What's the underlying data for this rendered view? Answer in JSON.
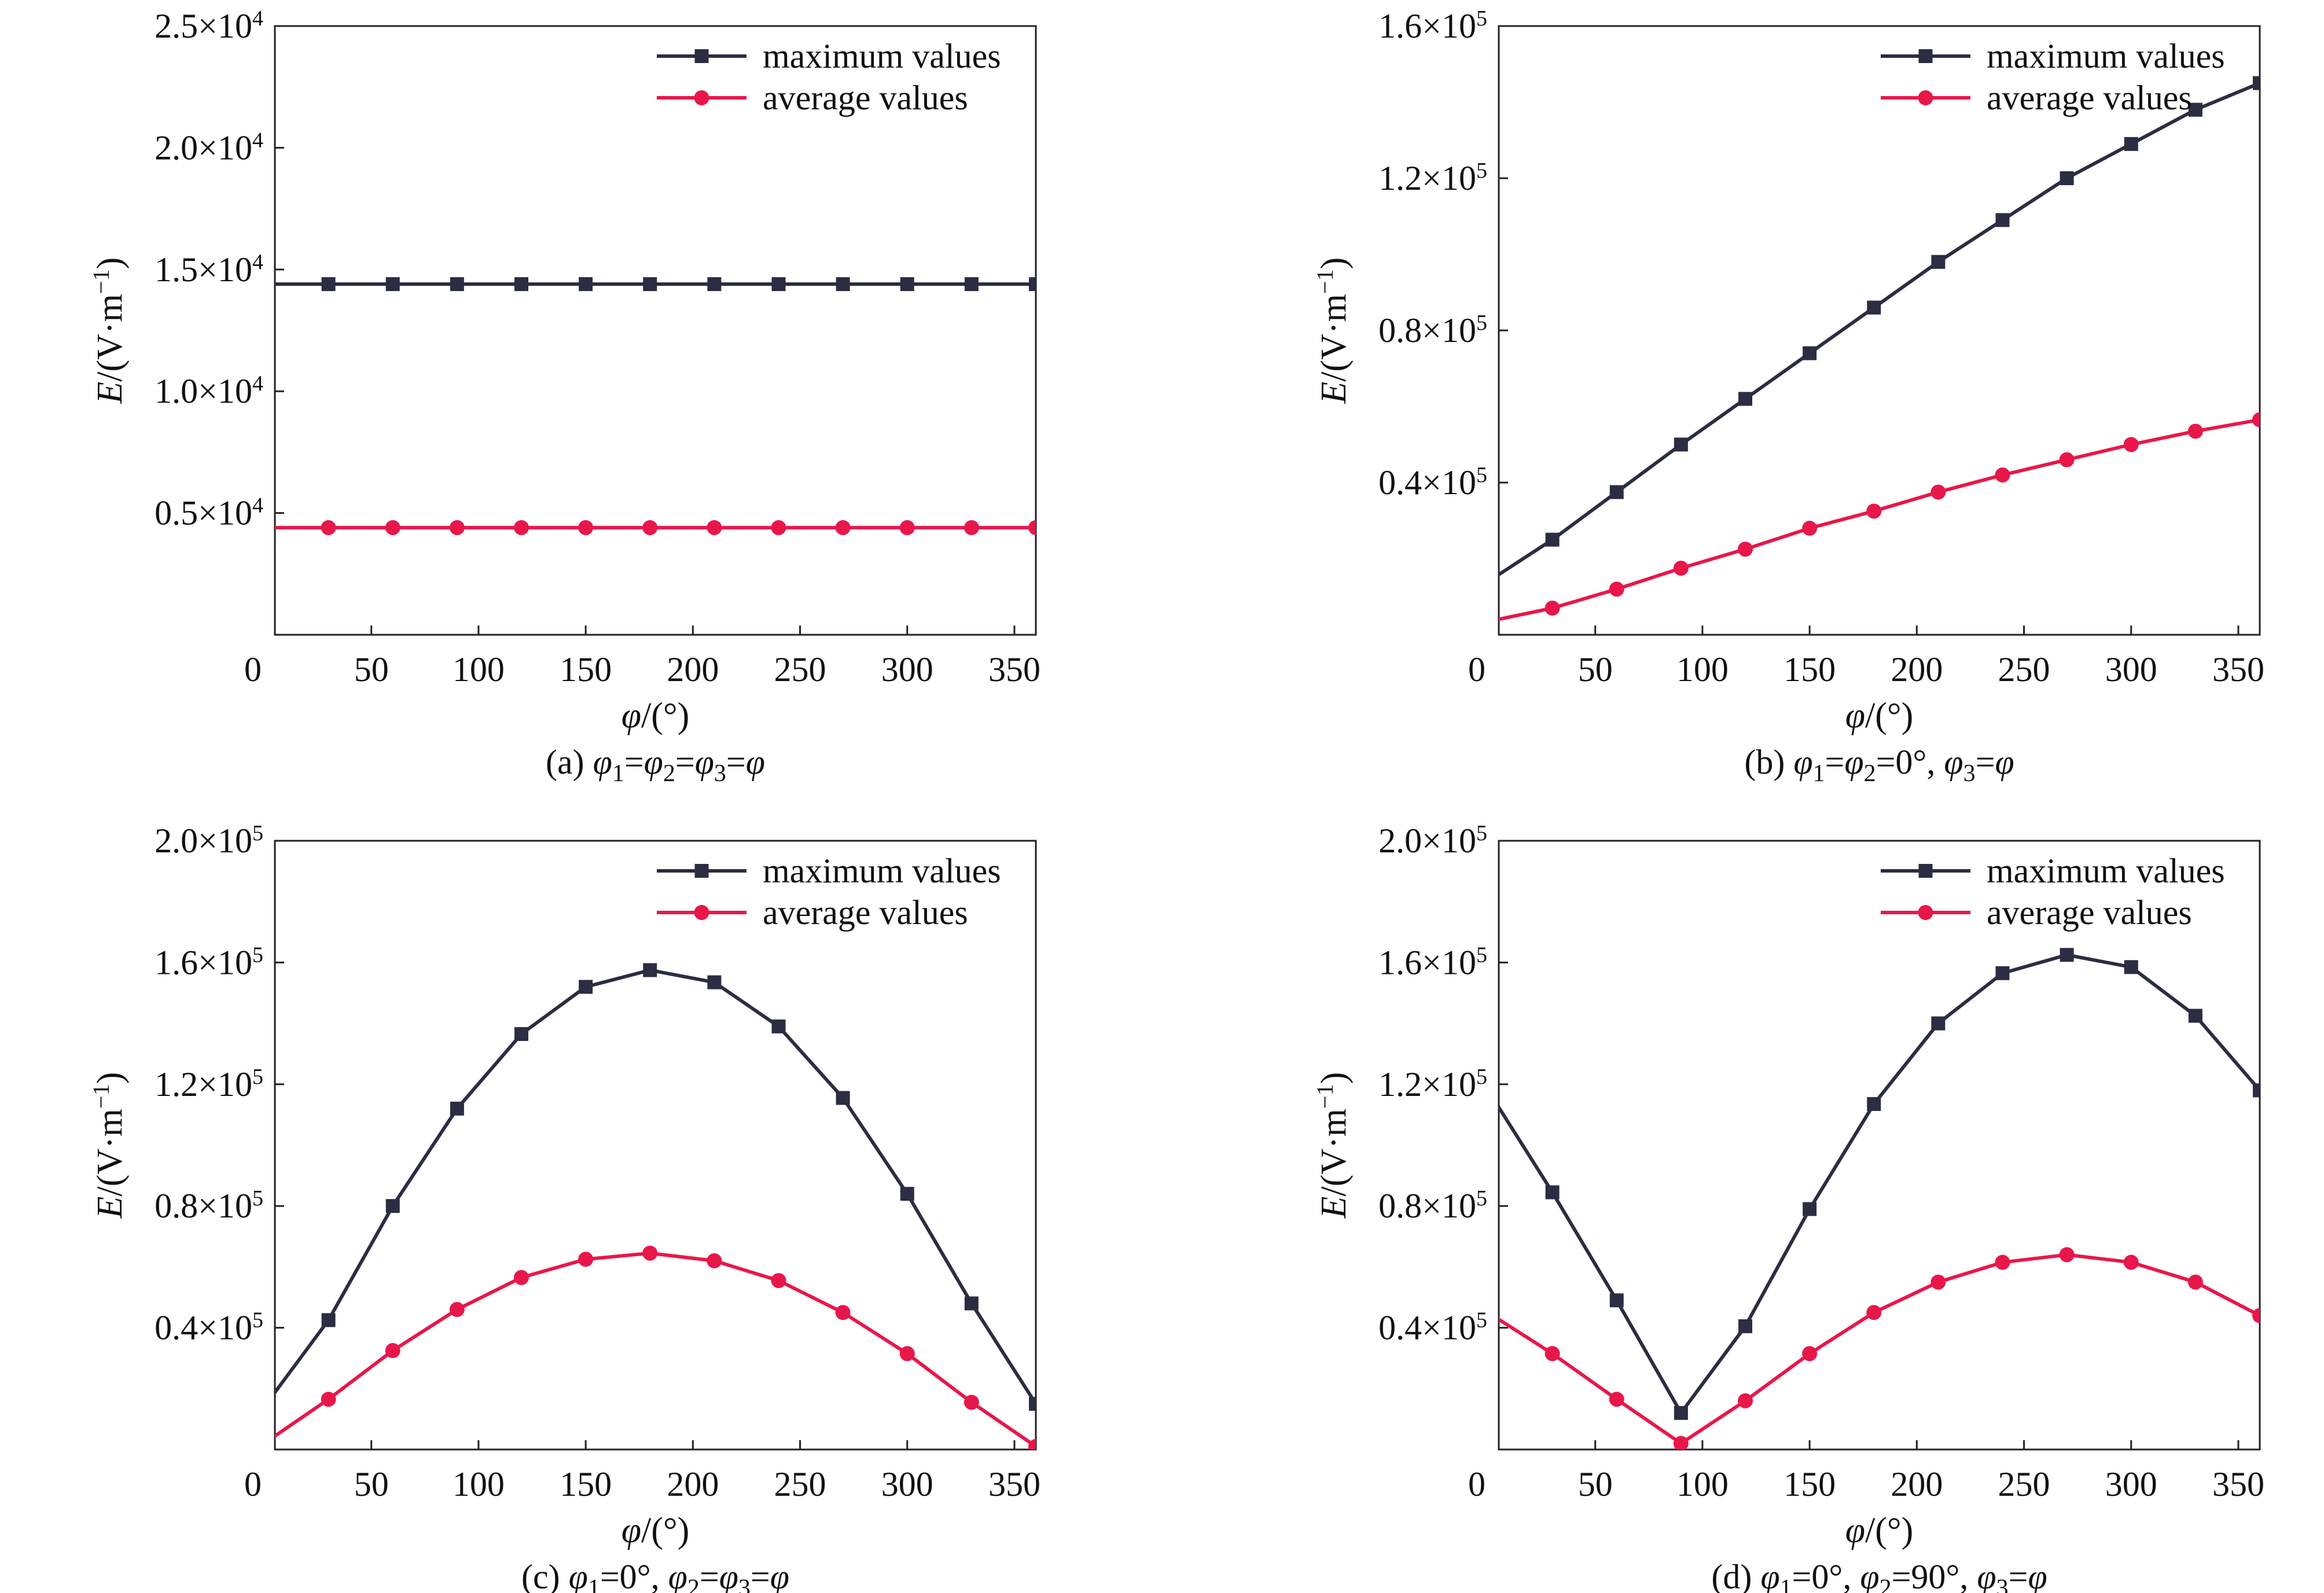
{
  "chart_data": [
    {
      "type": "line",
      "caption": "(a) φ1=φ2=φ3=φ",
      "xlabel": "φ/(°)",
      "ylabel": "E/(V·m⁻¹)",
      "xlim": [
        5,
        360
      ],
      "ylim": [
        0,
        25000
      ],
      "xticks": [
        0,
        50,
        100,
        150,
        200,
        250,
        300,
        350
      ],
      "yticks": [
        5000,
        10000,
        15000,
        20000,
        25000
      ],
      "ytick_labels": [
        {
          "mant": "0.5×10",
          "exp": "4"
        },
        {
          "mant": "1.0×10",
          "exp": "4"
        },
        {
          "mant": "1.5×10",
          "exp": "4"
        },
        {
          "mant": "2.0×10",
          "exp": "4"
        },
        {
          "mant": "2.5×10",
          "exp": "4"
        }
      ],
      "grid": false,
      "legend_position": "top-right",
      "x": [
        0,
        30,
        60,
        90,
        120,
        150,
        180,
        210,
        240,
        270,
        300,
        330,
        360
      ],
      "series": [
        {
          "name": "maximum values",
          "color": "#2b2d42",
          "marker": "square",
          "values": [
            14400,
            14400,
            14400,
            14400,
            14400,
            14400,
            14400,
            14400,
            14400,
            14400,
            14400,
            14400,
            14400
          ]
        },
        {
          "name": "average values",
          "color": "#e8174a",
          "marker": "circle",
          "values": [
            4400,
            4400,
            4400,
            4400,
            4400,
            4400,
            4400,
            4400,
            4400,
            4400,
            4400,
            4400,
            4400
          ]
        }
      ]
    },
    {
      "type": "line",
      "caption": "(b) φ1=φ2=0°, φ3=φ",
      "xlabel": "φ/(°)",
      "ylabel": "E/(V·m⁻¹)",
      "xlim": [
        5,
        360
      ],
      "ylim": [
        0,
        160000
      ],
      "xticks": [
        0,
        50,
        100,
        150,
        200,
        250,
        300,
        350
      ],
      "yticks": [
        40000,
        80000,
        120000,
        160000
      ],
      "ytick_labels": [
        {
          "mant": "0.4×10",
          "exp": "5"
        },
        {
          "mant": "0.8×10",
          "exp": "5"
        },
        {
          "mant": "1.2×10",
          "exp": "5"
        },
        {
          "mant": "1.6×10",
          "exp": "5"
        }
      ],
      "grid": false,
      "legend_position": "top-right",
      "x": [
        0,
        30,
        60,
        90,
        120,
        150,
        180,
        210,
        240,
        270,
        300,
        330,
        360
      ],
      "series": [
        {
          "name": "maximum values",
          "color": "#2b2d42",
          "marker": "square",
          "values": [
            14000,
            25000,
            37500,
            50000,
            62000,
            74000,
            86000,
            98000,
            109000,
            120000,
            129000,
            138000,
            145000
          ]
        },
        {
          "name": "average values",
          "color": "#e8174a",
          "marker": "circle",
          "values": [
            3500,
            7000,
            12000,
            17500,
            22500,
            28000,
            32500,
            37500,
            42000,
            46000,
            50000,
            53500,
            56500
          ]
        }
      ]
    },
    {
      "type": "line",
      "caption": "(c) φ1=0°, φ2=φ3=φ",
      "xlabel": "φ/(°)",
      "ylabel": "E/(V·m⁻¹)",
      "xlim": [
        5,
        360
      ],
      "ylim": [
        0,
        200000
      ],
      "xticks": [
        0,
        50,
        100,
        150,
        200,
        250,
        300,
        350
      ],
      "yticks": [
        40000,
        80000,
        120000,
        160000,
        200000
      ],
      "ytick_labels": [
        {
          "mant": "0.4×10",
          "exp": "5"
        },
        {
          "mant": "0.8×10",
          "exp": "5"
        },
        {
          "mant": "1.2×10",
          "exp": "5"
        },
        {
          "mant": "1.6×10",
          "exp": "5"
        },
        {
          "mant": "2.0×10",
          "exp": "5"
        }
      ],
      "grid": false,
      "legend_position": "top-right",
      "x": [
        0,
        30,
        60,
        90,
        120,
        150,
        180,
        210,
        240,
        270,
        300,
        330,
        360
      ],
      "series": [
        {
          "name": "maximum values",
          "color": "#2b2d42",
          "marker": "square",
          "values": [
            14000,
            42500,
            80000,
            112000,
            136500,
            152000,
            157500,
            153500,
            139000,
            115500,
            84000,
            48000,
            15000
          ]
        },
        {
          "name": "average values",
          "color": "#e8174a",
          "marker": "circle",
          "values": [
            2000,
            16500,
            32500,
            46000,
            56500,
            62500,
            64500,
            62000,
            55500,
            45000,
            31500,
            15500,
            1000
          ]
        }
      ]
    },
    {
      "type": "line",
      "caption": "(d) φ1=0°, φ2=90°, φ3=φ",
      "xlabel": "φ/(°)",
      "ylabel": "E/(V·m⁻¹)",
      "xlim": [
        5,
        360
      ],
      "ylim": [
        0,
        200000
      ],
      "xticks": [
        0,
        50,
        100,
        150,
        200,
        250,
        300,
        350
      ],
      "yticks": [
        40000,
        80000,
        120000,
        160000,
        200000
      ],
      "ytick_labels": [
        {
          "mant": "0.4×10",
          "exp": "5"
        },
        {
          "mant": "0.8×10",
          "exp": "5"
        },
        {
          "mant": "1.2×10",
          "exp": "5"
        },
        {
          "mant": "1.6×10",
          "exp": "5"
        },
        {
          "mant": "2.0×10",
          "exp": "5"
        }
      ],
      "grid": false,
      "legend_position": "top-right",
      "x": [
        0,
        30,
        60,
        90,
        120,
        150,
        180,
        210,
        240,
        270,
        300,
        330,
        360
      ],
      "series": [
        {
          "name": "maximum values",
          "color": "#2b2d42",
          "marker": "square",
          "values": [
            118000,
            84500,
            49000,
            12000,
            40500,
            79000,
            113500,
            140000,
            156500,
            162500,
            158500,
            142500,
            118000
          ]
        },
        {
          "name": "average values",
          "color": "#e8174a",
          "marker": "circle",
          "values": [
            45000,
            31500,
            16500,
            2000,
            16000,
            31500,
            45000,
            55000,
            61500,
            64000,
            61500,
            55000,
            44000
          ]
        }
      ]
    }
  ]
}
